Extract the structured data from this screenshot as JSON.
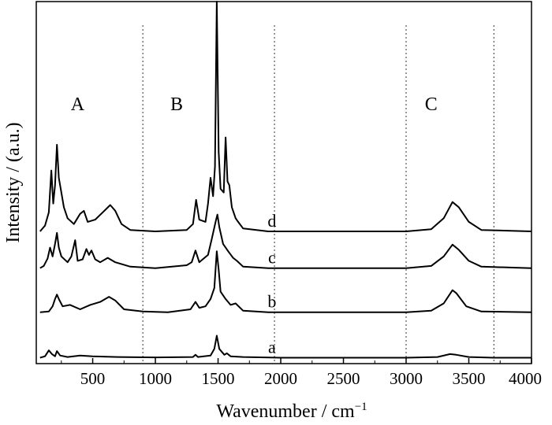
{
  "chart_data": {
    "type": "line",
    "xlabel": "Wavenumber / cm",
    "xlabel_sup": "−1",
    "ylabel": "Intensity / (a.u.)",
    "xlim": [
      50,
      4000
    ],
    "xticks": [
      500,
      1000,
      1500,
      2000,
      2500,
      3000,
      3500,
      4000
    ],
    "grid": false,
    "legend": "none",
    "region_dividers": [
      900,
      1950,
      3000,
      3700
    ],
    "region_labels": [
      {
        "text": "A",
        "x": 380
      },
      {
        "text": "B",
        "x": 1170
      },
      {
        "text": "C",
        "x": 3200
      }
    ],
    "series": [
      {
        "label": "a",
        "label_x": 1930,
        "baseline": 0.0,
        "points": [
          [
            80,
            0
          ],
          [
            120,
            0.02
          ],
          [
            150,
            0.1
          ],
          [
            175,
            0.05
          ],
          [
            200,
            0.02
          ],
          [
            215,
            0.09
          ],
          [
            240,
            0.03
          ],
          [
            300,
            0.01
          ],
          [
            400,
            0.03
          ],
          [
            500,
            0.02
          ],
          [
            700,
            0.01
          ],
          [
            1000,
            0.005
          ],
          [
            1300,
            0.01
          ],
          [
            1320,
            0.04
          ],
          [
            1340,
            0.01
          ],
          [
            1440,
            0.03
          ],
          [
            1470,
            0.12
          ],
          [
            1490,
            0.3
          ],
          [
            1510,
            0.12
          ],
          [
            1550,
            0.04
          ],
          [
            1570,
            0.06
          ],
          [
            1600,
            0.02
          ],
          [
            1700,
            0.01
          ],
          [
            2000,
            0.0
          ],
          [
            3000,
            0.0
          ],
          [
            3250,
            0.01
          ],
          [
            3350,
            0.05
          ],
          [
            3400,
            0.04
          ],
          [
            3500,
            0.01
          ],
          [
            3700,
            0.0
          ],
          [
            4000,
            0.0
          ]
        ]
      },
      {
        "label": "b",
        "label_x": 1930,
        "baseline": 0.62,
        "points": [
          [
            80,
            0.62
          ],
          [
            150,
            0.63
          ],
          [
            180,
            0.7
          ],
          [
            200,
            0.8
          ],
          [
            215,
            0.86
          ],
          [
            230,
            0.8
          ],
          [
            260,
            0.7
          ],
          [
            320,
            0.72
          ],
          [
            400,
            0.66
          ],
          [
            480,
            0.72
          ],
          [
            560,
            0.76
          ],
          [
            630,
            0.83
          ],
          [
            680,
            0.78
          ],
          [
            750,
            0.66
          ],
          [
            900,
            0.63
          ],
          [
            1100,
            0.62
          ],
          [
            1280,
            0.66
          ],
          [
            1320,
            0.76
          ],
          [
            1350,
            0.68
          ],
          [
            1400,
            0.7
          ],
          [
            1440,
            0.8
          ],
          [
            1470,
            0.95
          ],
          [
            1490,
            1.45
          ],
          [
            1505,
            1.2
          ],
          [
            1520,
            0.9
          ],
          [
            1560,
            0.8
          ],
          [
            1600,
            0.72
          ],
          [
            1640,
            0.74
          ],
          [
            1700,
            0.64
          ],
          [
            1900,
            0.62
          ],
          [
            3000,
            0.62
          ],
          [
            3200,
            0.64
          ],
          [
            3300,
            0.74
          ],
          [
            3370,
            0.92
          ],
          [
            3400,
            0.88
          ],
          [
            3480,
            0.7
          ],
          [
            3600,
            0.63
          ],
          [
            4000,
            0.62
          ]
        ]
      },
      {
        "label": "c",
        "label_x": 1930,
        "baseline": 1.22,
        "points": [
          [
            80,
            1.22
          ],
          [
            110,
            1.25
          ],
          [
            140,
            1.35
          ],
          [
            160,
            1.5
          ],
          [
            180,
            1.38
          ],
          [
            200,
            1.55
          ],
          [
            215,
            1.7
          ],
          [
            230,
            1.5
          ],
          [
            250,
            1.38
          ],
          [
            300,
            1.3
          ],
          [
            330,
            1.38
          ],
          [
            360,
            1.6
          ],
          [
            380,
            1.32
          ],
          [
            420,
            1.34
          ],
          [
            450,
            1.48
          ],
          [
            470,
            1.4
          ],
          [
            490,
            1.46
          ],
          [
            520,
            1.34
          ],
          [
            560,
            1.3
          ],
          [
            620,
            1.36
          ],
          [
            680,
            1.3
          ],
          [
            800,
            1.24
          ],
          [
            1000,
            1.22
          ],
          [
            1250,
            1.26
          ],
          [
            1290,
            1.3
          ],
          [
            1320,
            1.46
          ],
          [
            1350,
            1.3
          ],
          [
            1420,
            1.4
          ],
          [
            1450,
            1.62
          ],
          [
            1480,
            1.85
          ],
          [
            1495,
            1.95
          ],
          [
            1510,
            1.78
          ],
          [
            1540,
            1.55
          ],
          [
            1560,
            1.5
          ],
          [
            1580,
            1.45
          ],
          [
            1620,
            1.36
          ],
          [
            1650,
            1.32
          ],
          [
            1700,
            1.24
          ],
          [
            1900,
            1.22
          ],
          [
            3000,
            1.22
          ],
          [
            3200,
            1.25
          ],
          [
            3300,
            1.38
          ],
          [
            3370,
            1.54
          ],
          [
            3420,
            1.47
          ],
          [
            3500,
            1.32
          ],
          [
            3600,
            1.24
          ],
          [
            4000,
            1.22
          ]
        ]
      },
      {
        "label": "d",
        "label_x": 1930,
        "baseline": 1.72,
        "points": [
          [
            80,
            1.72
          ],
          [
            120,
            1.8
          ],
          [
            150,
            1.98
          ],
          [
            170,
            2.55
          ],
          [
            185,
            2.1
          ],
          [
            200,
            2.35
          ],
          [
            215,
            2.9
          ],
          [
            230,
            2.45
          ],
          [
            250,
            2.25
          ],
          [
            270,
            2.05
          ],
          [
            300,
            1.9
          ],
          [
            350,
            1.82
          ],
          [
            400,
            1.96
          ],
          [
            430,
            2.0
          ],
          [
            460,
            1.85
          ],
          [
            520,
            1.88
          ],
          [
            580,
            1.98
          ],
          [
            640,
            2.08
          ],
          [
            680,
            2.0
          ],
          [
            730,
            1.82
          ],
          [
            800,
            1.74
          ],
          [
            1000,
            1.72
          ],
          [
            1250,
            1.74
          ],
          [
            1300,
            1.82
          ],
          [
            1325,
            2.15
          ],
          [
            1350,
            1.88
          ],
          [
            1400,
            1.85
          ],
          [
            1420,
            2.1
          ],
          [
            1440,
            2.45
          ],
          [
            1460,
            2.2
          ],
          [
            1475,
            2.6
          ],
          [
            1490,
            4.85
          ],
          [
            1505,
            2.8
          ],
          [
            1520,
            2.3
          ],
          [
            1545,
            2.25
          ],
          [
            1560,
            3.0
          ],
          [
            1575,
            2.4
          ],
          [
            1590,
            2.35
          ],
          [
            1610,
            2.05
          ],
          [
            1640,
            1.9
          ],
          [
            1660,
            1.85
          ],
          [
            1700,
            1.76
          ],
          [
            1900,
            1.72
          ],
          [
            3000,
            1.72
          ],
          [
            3200,
            1.75
          ],
          [
            3300,
            1.9
          ],
          [
            3370,
            2.12
          ],
          [
            3420,
            2.05
          ],
          [
            3500,
            1.85
          ],
          [
            3600,
            1.74
          ],
          [
            4000,
            1.72
          ]
        ]
      }
    ]
  }
}
